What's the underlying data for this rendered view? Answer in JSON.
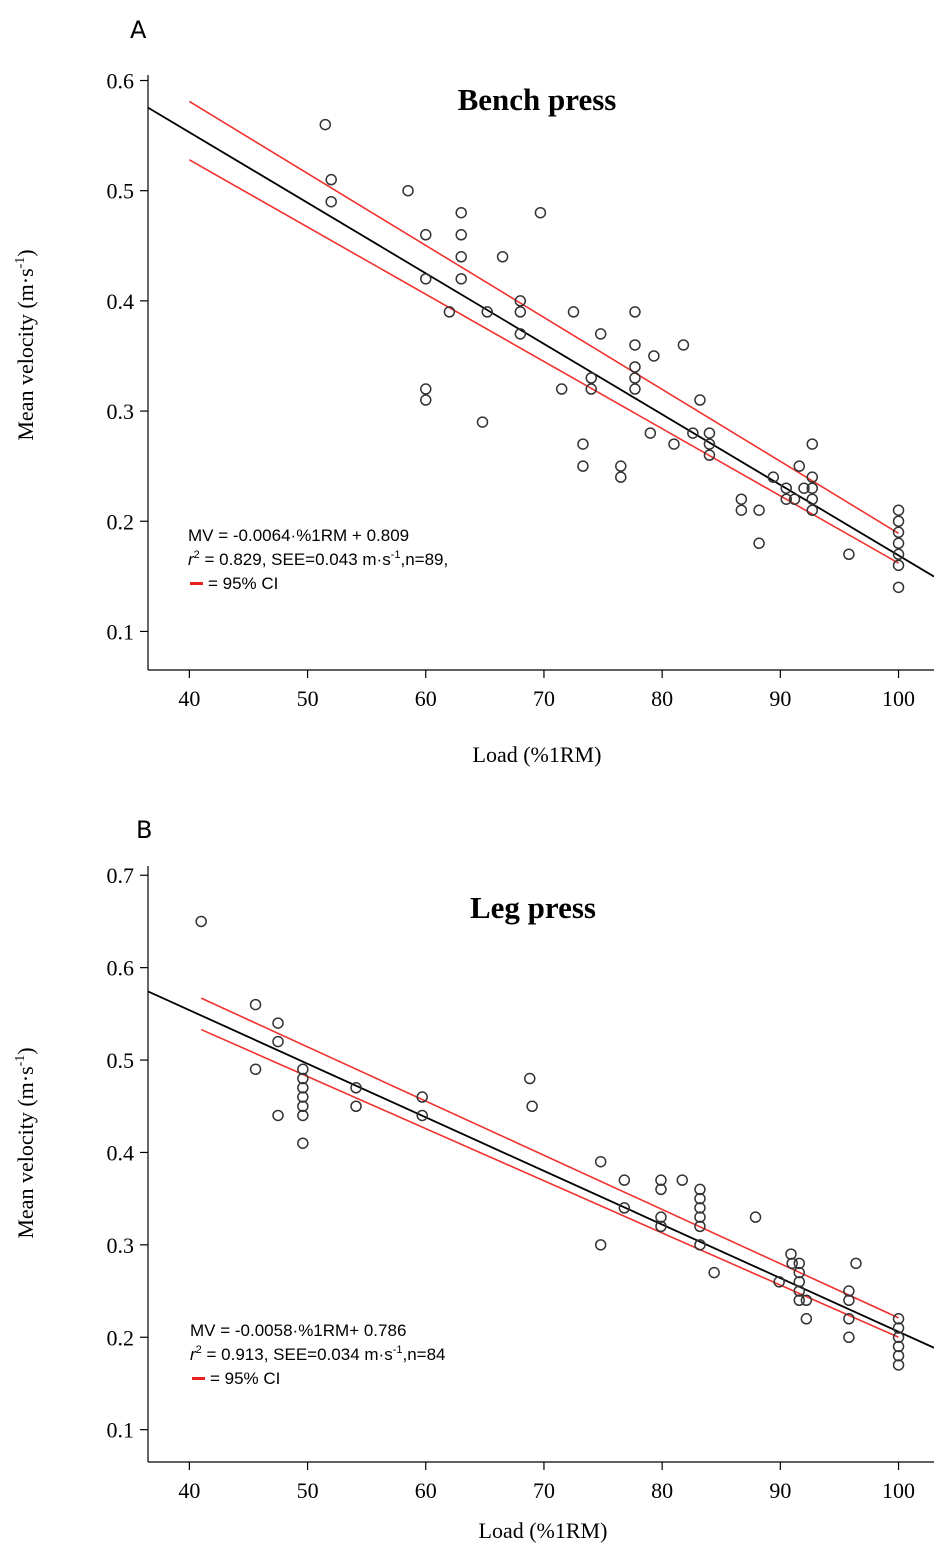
{
  "figure": {
    "panels": [
      {
        "letter": "A"
      },
      {
        "letter": "B"
      }
    ]
  },
  "chart_data": [
    {
      "type": "scatter",
      "title": "Bench press",
      "xlabel": "Load (%1RM)",
      "ylabel": "Mean velocity (m·s-1)",
      "xlim": [
        36.5,
        103
      ],
      "ylim": [
        0.065,
        0.605
      ],
      "xticks": [
        40,
        50,
        60,
        70,
        80,
        90,
        100
      ],
      "yticks": [
        0.1,
        0.2,
        0.3,
        0.4,
        0.5,
        0.6
      ],
      "xtick_labels": [
        "40",
        "50",
        "60",
        "70",
        "80",
        "90",
        "100"
      ],
      "ytick_labels": [
        "0.1",
        "0.2",
        "0.3",
        "0.4",
        "0.5",
        "0.6"
      ],
      "grid": false,
      "regression": {
        "slope": -0.0064,
        "intercept": 0.809,
        "color": "#000000"
      },
      "ci_bands": [
        {
          "x": [
            40,
            100
          ],
          "y": [
            0.581,
            0.189
          ],
          "color": "#f0322e"
        },
        {
          "x": [
            40,
            100
          ],
          "y": [
            0.528,
            0.162
          ],
          "color": "#f0322e"
        }
      ],
      "annotation": {
        "line1": "MV = -0.0064·%1RM + 0.809",
        "line2_r": "r",
        "line2_sup": "2",
        "line2_a": " = 0.829, SEE=0.043 m·s",
        "line2_exp": "-1",
        "line2_b": ",n=89,",
        "line3": "= 95% CI",
        "ci_swatch_color": "#e8201e"
      },
      "points": [
        [
          51.5,
          0.56
        ],
        [
          52,
          0.51
        ],
        [
          52,
          0.49
        ],
        [
          58.5,
          0.5
        ],
        [
          60,
          0.46
        ],
        [
          60,
          0.42
        ],
        [
          60,
          0.32
        ],
        [
          60,
          0.31
        ],
        [
          62,
          0.39
        ],
        [
          63,
          0.48
        ],
        [
          63,
          0.46
        ],
        [
          63,
          0.44
        ],
        [
          63,
          0.42
        ],
        [
          64.8,
          0.29
        ],
        [
          65.2,
          0.39
        ],
        [
          66.5,
          0.44
        ],
        [
          68,
          0.4
        ],
        [
          68,
          0.39
        ],
        [
          68,
          0.37
        ],
        [
          69.7,
          0.48
        ],
        [
          71.5,
          0.32
        ],
        [
          72.5,
          0.39
        ],
        [
          73.3,
          0.27
        ],
        [
          73.3,
          0.25
        ],
        [
          74,
          0.33
        ],
        [
          74,
          0.32
        ],
        [
          74.8,
          0.37
        ],
        [
          76.5,
          0.25
        ],
        [
          76.5,
          0.24
        ],
        [
          77.7,
          0.39
        ],
        [
          77.7,
          0.36
        ],
        [
          77.7,
          0.34
        ],
        [
          77.7,
          0.33
        ],
        [
          77.7,
          0.32
        ],
        [
          79,
          0.28
        ],
        [
          79.3,
          0.35
        ],
        [
          81,
          0.27
        ],
        [
          81.8,
          0.36
        ],
        [
          82.6,
          0.28
        ],
        [
          83.2,
          0.31
        ],
        [
          84,
          0.28
        ],
        [
          84,
          0.27
        ],
        [
          84,
          0.26
        ],
        [
          86.7,
          0.22
        ],
        [
          86.7,
          0.21
        ],
        [
          88.2,
          0.21
        ],
        [
          88.2,
          0.18
        ],
        [
          89.4,
          0.24
        ],
        [
          90.5,
          0.23
        ],
        [
          90.5,
          0.22
        ],
        [
          91.2,
          0.22
        ],
        [
          91.6,
          0.25
        ],
        [
          92,
          0.23
        ],
        [
          92.7,
          0.27
        ],
        [
          92.7,
          0.24
        ],
        [
          92.7,
          0.23
        ],
        [
          92.7,
          0.22
        ],
        [
          92.7,
          0.21
        ],
        [
          95.8,
          0.17
        ],
        [
          100,
          0.21
        ],
        [
          100,
          0.2
        ],
        [
          100,
          0.19
        ],
        [
          100,
          0.18
        ],
        [
          100,
          0.17
        ],
        [
          100,
          0.16
        ],
        [
          100,
          0.14
        ]
      ]
    },
    {
      "type": "scatter",
      "title": "Leg press",
      "xlabel": "Load (%1RM)",
      "ylabel": "Mean velocity (m·s-1)",
      "xlim": [
        36.5,
        103
      ],
      "ylim": [
        0.065,
        0.71
      ],
      "xticks": [
        40,
        50,
        60,
        70,
        80,
        90,
        100
      ],
      "yticks": [
        0.1,
        0.2,
        0.3,
        0.4,
        0.5,
        0.6,
        0.7
      ],
      "xtick_labels": [
        "40",
        "50",
        "60",
        "70",
        "80",
        "90",
        "100"
      ],
      "ytick_labels": [
        "0.1",
        "0.2",
        "0.3",
        "0.4",
        "0.5",
        "0.6",
        "0.7"
      ],
      "grid": false,
      "regression": {
        "slope": -0.0058,
        "intercept": 0.786,
        "color": "#000000"
      },
      "ci_bands": [
        {
          "x": [
            41,
            100
          ],
          "y": [
            0.567,
            0.221
          ],
          "color": "#f0322e"
        },
        {
          "x": [
            41,
            100
          ],
          "y": [
            0.533,
            0.2
          ],
          "color": "#f0322e"
        }
      ],
      "annotation": {
        "line1": "MV = -0.0058·%1RM+ 0.786",
        "line2_r": "r",
        "line2_sup": "2",
        "line2_a": " = 0.913, SEE=0.034 m·s",
        "line2_exp": "-1",
        "line2_b": ",n=84",
        "line3": "= 95% CI",
        "ci_swatch_color": "#e8201e"
      },
      "points": [
        [
          41,
          0.65
        ],
        [
          45.6,
          0.56
        ],
        [
          45.6,
          0.49
        ],
        [
          47.5,
          0.54
        ],
        [
          47.5,
          0.52
        ],
        [
          47.5,
          0.44
        ],
        [
          49.6,
          0.49
        ],
        [
          49.6,
          0.48
        ],
        [
          49.6,
          0.47
        ],
        [
          49.6,
          0.46
        ],
        [
          49.6,
          0.45
        ],
        [
          49.6,
          0.44
        ],
        [
          49.6,
          0.41
        ],
        [
          54.1,
          0.47
        ],
        [
          54.1,
          0.45
        ],
        [
          59.7,
          0.46
        ],
        [
          59.7,
          0.44
        ],
        [
          68.8,
          0.48
        ],
        [
          69,
          0.45
        ],
        [
          74.8,
          0.39
        ],
        [
          74.8,
          0.3
        ],
        [
          76.8,
          0.37
        ],
        [
          76.8,
          0.34
        ],
        [
          79.9,
          0.37
        ],
        [
          79.9,
          0.36
        ],
        [
          79.9,
          0.33
        ],
        [
          79.9,
          0.32
        ],
        [
          81.7,
          0.37
        ],
        [
          83.2,
          0.36
        ],
        [
          83.2,
          0.35
        ],
        [
          83.2,
          0.34
        ],
        [
          83.2,
          0.33
        ],
        [
          83.2,
          0.32
        ],
        [
          83.2,
          0.3
        ],
        [
          84.4,
          0.27
        ],
        [
          87.9,
          0.33
        ],
        [
          89.9,
          0.26
        ],
        [
          90.9,
          0.29
        ],
        [
          91,
          0.28
        ],
        [
          91.6,
          0.28
        ],
        [
          91.6,
          0.27
        ],
        [
          91.6,
          0.26
        ],
        [
          91.6,
          0.25
        ],
        [
          91.6,
          0.24
        ],
        [
          92.2,
          0.24
        ],
        [
          92.2,
          0.22
        ],
        [
          95.8,
          0.25
        ],
        [
          95.8,
          0.24
        ],
        [
          95.8,
          0.22
        ],
        [
          95.8,
          0.2
        ],
        [
          96.4,
          0.28
        ],
        [
          100,
          0.22
        ],
        [
          100,
          0.21
        ],
        [
          100,
          0.2
        ],
        [
          100,
          0.19
        ],
        [
          100,
          0.18
        ],
        [
          100,
          0.17
        ]
      ]
    }
  ]
}
